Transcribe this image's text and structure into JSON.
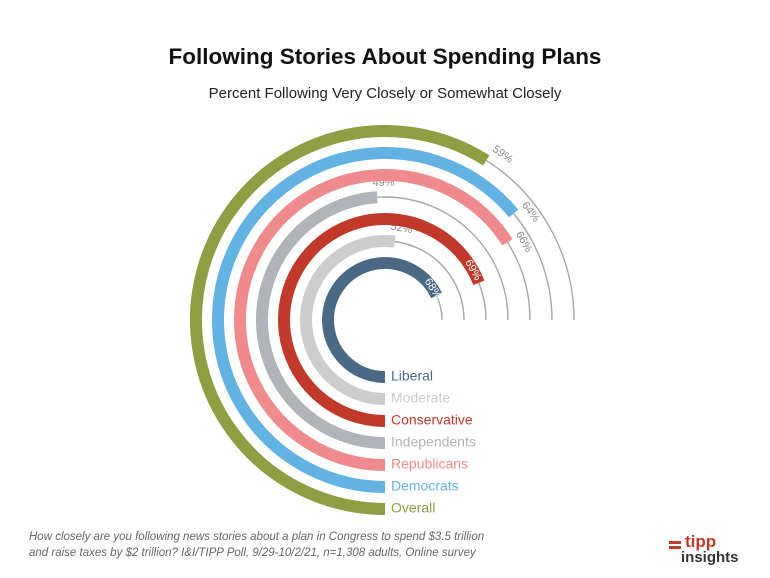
{
  "chart_data": {
    "type": "radial-bar",
    "title": "Following Stories About Spending Plans",
    "subtitle": "Percent Following Very Closely or Somewhat Closely",
    "max_value": 100,
    "series": [
      {
        "name": "Liberal",
        "value": 68,
        "label": "68%",
        "color": "#4a6985"
      },
      {
        "name": "Moderate",
        "value": 52,
        "label": "52%",
        "color": "#cccccc"
      },
      {
        "name": "Conservative",
        "value": 69,
        "label": "69%",
        "color": "#c0392b"
      },
      {
        "name": "Independents",
        "value": 49,
        "label": "49%",
        "color": "#b0b3b7"
      },
      {
        "name": "Republicans",
        "value": 66,
        "label": "66%",
        "color": "#f08b8d"
      },
      {
        "name": "Democrats",
        "value": 64,
        "label": "64%",
        "color": "#62b3e4"
      },
      {
        "name": "Overall",
        "value": 59,
        "label": "59%",
        "color": "#8f9e43"
      }
    ]
  },
  "footnote": {
    "line1": "How closely are you following news stories about a plan in Congress to spend $3.5 trillion",
    "line2": "and raise taxes by $2 trillion? I&I/TIPP Poll, 9/29-10/2/21, n=1,308 adults, Online survey"
  },
  "logo": {
    "top": "tipp",
    "bottom": "insights"
  }
}
